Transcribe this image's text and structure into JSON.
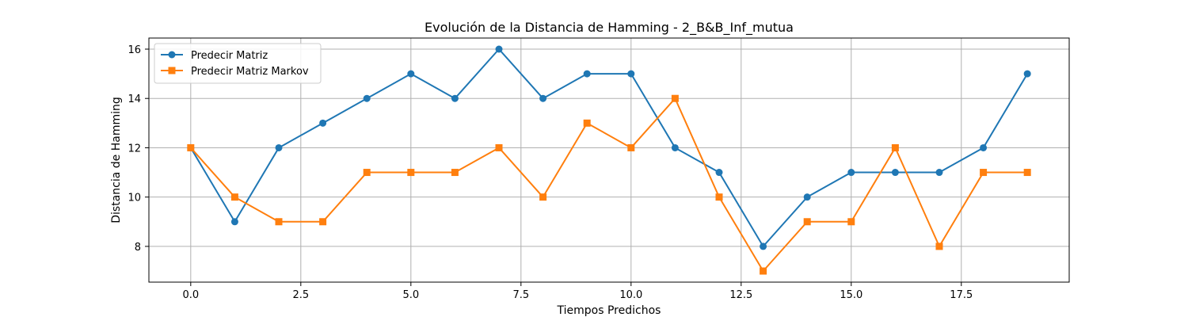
{
  "chart_data": {
    "type": "line",
    "title": "Evolución de la Distancia de Hamming - 2_B&B_Inf_mutua",
    "xlabel": "Tiempos Predichos",
    "ylabel": "Distancia de Hamming",
    "xlim": [
      -0.95,
      19.95
    ],
    "ylim": [
      6.55,
      16.45
    ],
    "xticks": [
      0.0,
      2.5,
      5.0,
      7.5,
      10.0,
      12.5,
      15.0,
      17.5
    ],
    "xtick_labels": [
      "0.0",
      "2.5",
      "5.0",
      "7.5",
      "10.0",
      "12.5",
      "15.0",
      "17.5"
    ],
    "yticks": [
      8,
      10,
      12,
      14,
      16
    ],
    "ytick_labels": [
      "8",
      "10",
      "12",
      "14",
      "16"
    ],
    "grid": true,
    "legend_position": "top-left",
    "x": [
      0,
      1,
      2,
      3,
      4,
      5,
      6,
      7,
      8,
      9,
      10,
      11,
      12,
      13,
      14,
      15,
      16,
      17,
      18,
      19
    ],
    "series": [
      {
        "name": "Predecir Matriz",
        "color": "#1f77b4",
        "marker": "circle",
        "values": [
          12,
          9,
          12,
          13,
          14,
          15,
          14,
          16,
          14,
          15,
          15,
          12,
          11,
          8,
          10,
          11,
          11,
          11,
          12,
          15
        ]
      },
      {
        "name": "Predecir Matriz Markov",
        "color": "#ff7f0e",
        "marker": "square",
        "values": [
          12,
          10,
          9,
          9,
          11,
          11,
          11,
          12,
          10,
          13,
          12,
          14,
          10,
          7,
          9,
          9,
          12,
          8,
          11,
          11
        ]
      }
    ]
  }
}
